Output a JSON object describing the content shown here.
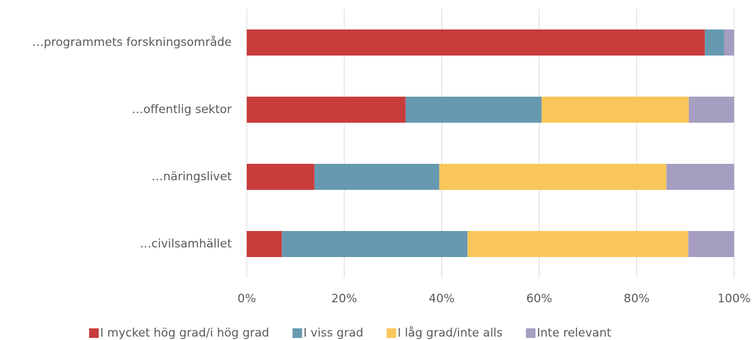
{
  "chart_data": {
    "type": "stacked-bar-horizontal",
    "categories": [
      "…programmets forskningsområde",
      "…offentlig sektor",
      "…näringslivet",
      "…civilsamhället"
    ],
    "series": [
      {
        "name": "I mycket hög grad/i hög grad",
        "color": "#c83c3c",
        "values": [
          94,
          32.6,
          13.9,
          7.2
        ]
      },
      {
        "name": "I viss grad",
        "color": "#6699b0",
        "values": [
          4,
          27.9,
          25.6,
          38.1
        ]
      },
      {
        "name": "I låg grad/inte alls",
        "color": "#f8c65a",
        "values": [
          0,
          30.2,
          46.6,
          45.3
        ]
      },
      {
        "name": "Inte relevant",
        "color": "#a59ec0",
        "values": [
          2,
          9.3,
          13.9,
          9.4
        ]
      }
    ],
    "xlim": [
      0,
      100
    ],
    "xticks": [
      {
        "value": 0,
        "label": "0%"
      },
      {
        "value": 20,
        "label": "20%"
      },
      {
        "value": 40,
        "label": "40%"
      },
      {
        "value": 60,
        "label": "60%"
      },
      {
        "value": 80,
        "label": "80%"
      },
      {
        "value": 100,
        "label": "100%"
      }
    ],
    "grid": true,
    "legend": "bottom"
  }
}
